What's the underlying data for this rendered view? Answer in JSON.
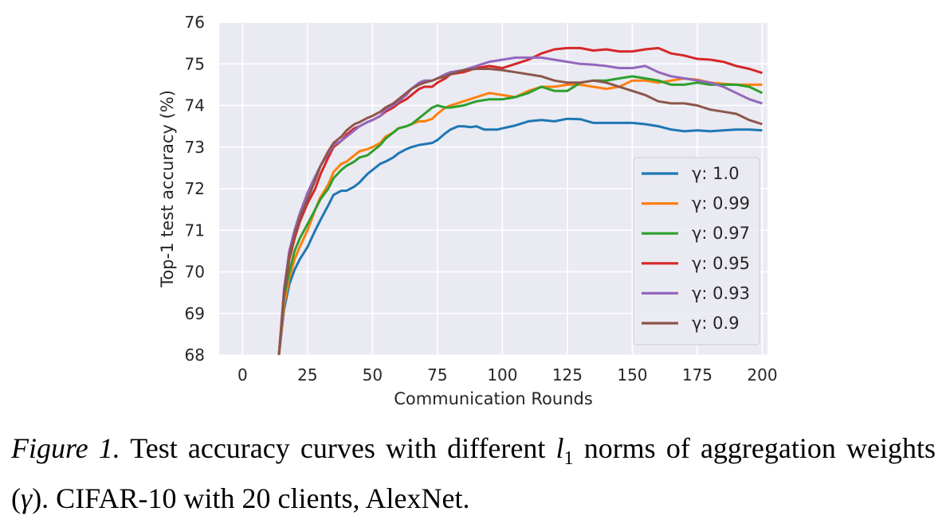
{
  "chart_data": {
    "type": "line",
    "xlabel": "Communication Rounds",
    "ylabel": "Top-1 test accuracy (%)",
    "xlim": [
      -9,
      202
    ],
    "ylim": [
      68,
      76
    ],
    "xticks": [
      0,
      25,
      50,
      75,
      100,
      125,
      150,
      175,
      200
    ],
    "yticks": [
      68,
      69,
      70,
      71,
      72,
      73,
      74,
      75,
      76
    ],
    "grid": true,
    "legend_position": "lower-right",
    "series": [
      {
        "name": "γ: 1.0",
        "color": "#1f77b4",
        "x": [
          14,
          16,
          18,
          20,
          22,
          25,
          28,
          30,
          33,
          35,
          38,
          40,
          43,
          45,
          48,
          50,
          53,
          55,
          58,
          60,
          63,
          65,
          68,
          70,
          73,
          75,
          78,
          80,
          83,
          85,
          88,
          90,
          93,
          95,
          98,
          100,
          105,
          110,
          115,
          120,
          125,
          130,
          135,
          140,
          145,
          150,
          155,
          160,
          165,
          170,
          175,
          180,
          185,
          190,
          195,
          200
        ],
        "y": [
          68.0,
          69.1,
          69.7,
          70.05,
          70.3,
          70.6,
          71.0,
          71.25,
          71.6,
          71.85,
          71.95,
          71.95,
          72.05,
          72.15,
          72.35,
          72.45,
          72.6,
          72.65,
          72.75,
          72.85,
          72.95,
          73.0,
          73.05,
          73.07,
          73.1,
          73.17,
          73.33,
          73.42,
          73.5,
          73.5,
          73.48,
          73.5,
          73.42,
          73.42,
          73.42,
          73.45,
          73.52,
          73.62,
          73.65,
          73.62,
          73.68,
          73.67,
          73.58,
          73.58,
          73.58,
          73.58,
          73.55,
          73.5,
          73.42,
          73.38,
          73.4,
          73.38,
          73.4,
          73.42,
          73.42,
          73.4
        ]
      },
      {
        "name": "γ: 0.99",
        "color": "#ff7f0e",
        "x": [
          14,
          16,
          18,
          20,
          22,
          25,
          28,
          30,
          33,
          35,
          38,
          40,
          43,
          45,
          48,
          50,
          53,
          55,
          58,
          60,
          63,
          65,
          68,
          70,
          73,
          75,
          78,
          80,
          85,
          90,
          95,
          100,
          105,
          110,
          115,
          120,
          125,
          130,
          135,
          140,
          145,
          150,
          155,
          160,
          165,
          170,
          175,
          180,
          185,
          190,
          195,
          200
        ],
        "y": [
          68.0,
          69.2,
          69.85,
          70.3,
          70.6,
          71.0,
          71.5,
          71.8,
          72.1,
          72.4,
          72.6,
          72.65,
          72.8,
          72.9,
          72.95,
          73.0,
          73.1,
          73.25,
          73.35,
          73.45,
          73.5,
          73.55,
          73.62,
          73.62,
          73.68,
          73.8,
          73.95,
          74.0,
          74.1,
          74.2,
          74.3,
          74.25,
          74.2,
          74.35,
          74.45,
          74.45,
          74.5,
          74.5,
          74.45,
          74.4,
          74.45,
          74.6,
          74.6,
          74.55,
          74.6,
          74.65,
          74.62,
          74.55,
          74.52,
          74.5,
          74.5,
          74.5
        ]
      },
      {
        "name": "γ: 0.97",
        "color": "#2ca02c",
        "x": [
          14,
          16,
          18,
          20,
          22,
          25,
          28,
          30,
          33,
          35,
          38,
          40,
          43,
          45,
          48,
          50,
          53,
          55,
          58,
          60,
          63,
          65,
          68,
          70,
          73,
          75,
          78,
          80,
          85,
          90,
          95,
          100,
          105,
          110,
          115,
          120,
          125,
          130,
          135,
          140,
          145,
          150,
          155,
          160,
          165,
          170,
          175,
          180,
          185,
          190,
          195,
          200
        ],
        "y": [
          68.0,
          69.4,
          70.0,
          70.5,
          70.8,
          71.15,
          71.5,
          71.75,
          72.0,
          72.25,
          72.45,
          72.55,
          72.65,
          72.75,
          72.8,
          72.9,
          73.05,
          73.2,
          73.35,
          73.45,
          73.5,
          73.55,
          73.7,
          73.8,
          73.95,
          74.0,
          73.95,
          73.95,
          74.0,
          74.1,
          74.15,
          74.15,
          74.2,
          74.3,
          74.45,
          74.35,
          74.35,
          74.55,
          74.6,
          74.6,
          74.65,
          74.7,
          74.65,
          74.6,
          74.5,
          74.5,
          74.55,
          74.5,
          74.5,
          74.5,
          74.45,
          74.3
        ]
      },
      {
        "name": "γ: 0.95",
        "color": "#d62728",
        "x": [
          14,
          16,
          18,
          20,
          22,
          25,
          28,
          30,
          33,
          35,
          38,
          40,
          43,
          45,
          48,
          50,
          53,
          55,
          58,
          60,
          63,
          65,
          68,
          70,
          73,
          75,
          78,
          80,
          85,
          90,
          95,
          100,
          105,
          110,
          115,
          120,
          125,
          130,
          135,
          140,
          145,
          150,
          155,
          160,
          165,
          170,
          175,
          180,
          185,
          190,
          195,
          200
        ],
        "y": [
          68.0,
          69.5,
          70.3,
          70.8,
          71.2,
          71.65,
          72.0,
          72.35,
          72.75,
          73.0,
          73.15,
          73.3,
          73.45,
          73.5,
          73.6,
          73.65,
          73.75,
          73.85,
          73.95,
          74.05,
          74.15,
          74.25,
          74.4,
          74.45,
          74.45,
          74.55,
          74.65,
          74.75,
          74.8,
          74.9,
          74.95,
          74.9,
          75.0,
          75.1,
          75.25,
          75.35,
          75.38,
          75.38,
          75.32,
          75.35,
          75.3,
          75.3,
          75.35,
          75.38,
          75.25,
          75.2,
          75.12,
          75.1,
          75.05,
          74.95,
          74.88,
          74.78
        ]
      },
      {
        "name": "γ: 0.93",
        "color": "#9467bd",
        "x": [
          14,
          16,
          18,
          20,
          22,
          25,
          28,
          30,
          33,
          35,
          38,
          40,
          43,
          45,
          48,
          50,
          53,
          55,
          58,
          60,
          63,
          65,
          68,
          70,
          73,
          75,
          78,
          80,
          85,
          90,
          95,
          100,
          105,
          110,
          115,
          120,
          125,
          130,
          135,
          140,
          145,
          150,
          155,
          160,
          165,
          170,
          175,
          180,
          185,
          190,
          195,
          200
        ],
        "y": [
          68.0,
          69.6,
          70.5,
          71.0,
          71.4,
          71.9,
          72.3,
          72.55,
          72.85,
          73.05,
          73.15,
          73.25,
          73.4,
          73.5,
          73.6,
          73.65,
          73.75,
          73.9,
          74.0,
          74.1,
          74.25,
          74.4,
          74.55,
          74.6,
          74.6,
          74.65,
          74.75,
          74.8,
          74.85,
          74.95,
          75.05,
          75.1,
          75.15,
          75.15,
          75.15,
          75.1,
          75.05,
          75.0,
          74.98,
          74.95,
          74.9,
          74.9,
          74.95,
          74.8,
          74.7,
          74.65,
          74.6,
          74.55,
          74.45,
          74.3,
          74.15,
          74.05
        ]
      },
      {
        "name": "γ: 0.9",
        "color": "#8c564b",
        "x": [
          14,
          16,
          18,
          20,
          22,
          25,
          28,
          30,
          33,
          35,
          38,
          40,
          43,
          45,
          48,
          50,
          53,
          55,
          58,
          60,
          63,
          65,
          68,
          70,
          73,
          75,
          78,
          80,
          85,
          90,
          95,
          100,
          105,
          110,
          115,
          120,
          125,
          130,
          135,
          140,
          145,
          150,
          155,
          160,
          165,
          170,
          175,
          180,
          185,
          190,
          195,
          200
        ],
        "y": [
          68.0,
          69.5,
          70.4,
          70.9,
          71.3,
          71.75,
          72.2,
          72.55,
          72.9,
          73.1,
          73.25,
          73.4,
          73.55,
          73.6,
          73.7,
          73.75,
          73.85,
          73.95,
          74.05,
          74.15,
          74.3,
          74.4,
          74.5,
          74.55,
          74.6,
          74.65,
          74.7,
          74.75,
          74.85,
          74.88,
          74.88,
          74.85,
          74.8,
          74.75,
          74.7,
          74.6,
          74.55,
          74.55,
          74.6,
          74.55,
          74.45,
          74.35,
          74.25,
          74.1,
          74.05,
          74.05,
          74.0,
          73.9,
          73.85,
          73.8,
          73.65,
          73.55
        ]
      }
    ]
  },
  "caption": {
    "figure_label": "Figure 1.",
    "text_before_math": "Test accuracy curves with different",
    "math_l": "l",
    "math_sub": "1",
    "text_middle": "norms of aggregation weights (",
    "math_gamma": "γ",
    "text_after": "). CIFAR-10 with 20 clients, AlexNet."
  }
}
